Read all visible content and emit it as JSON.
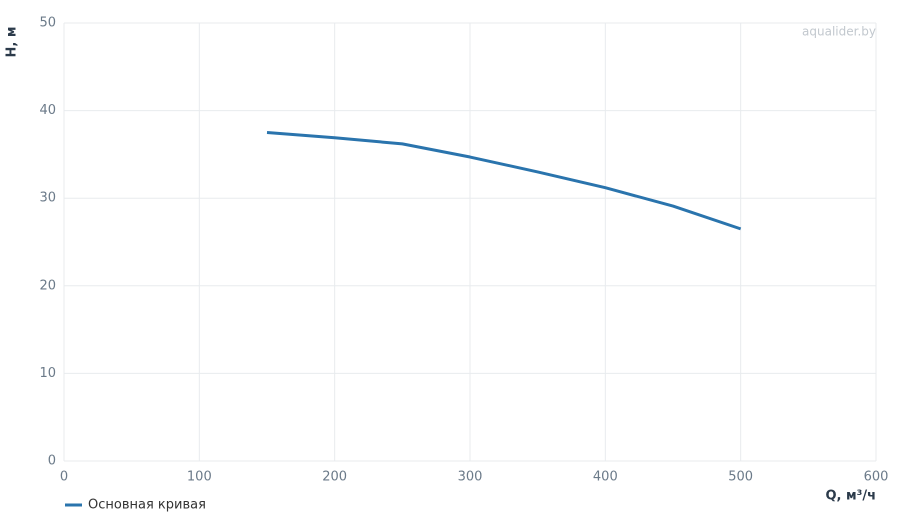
{
  "chart_data": {
    "type": "line",
    "x_label": "Q, м³/ч",
    "y_label": "H, м",
    "watermark": "aqualider.by",
    "x": [
      150,
      200,
      250,
      300,
      350,
      400,
      450,
      500
    ],
    "series": [
      {
        "name": "Основная кривая",
        "color": "#2a74ad",
        "values": [
          37.5,
          36.9,
          36.2,
          34.7,
          33.0,
          31.2,
          29.1,
          26.5
        ]
      }
    ],
    "xlim": [
      0,
      600
    ],
    "xticks": [
      0,
      100,
      200,
      300,
      400,
      500,
      600
    ],
    "ylim": [
      0,
      50
    ],
    "yticks": [
      0,
      10,
      20,
      30,
      40,
      50
    ],
    "grid": true,
    "legend": "bottom-left"
  }
}
